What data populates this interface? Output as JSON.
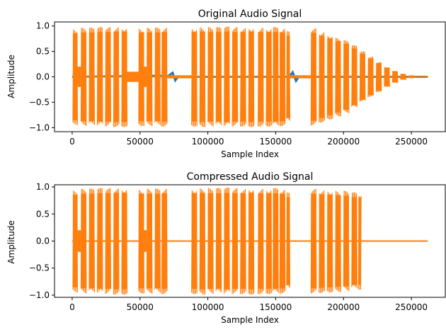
{
  "chart_data": [
    {
      "type": "line",
      "title": "Original Audio Signal",
      "xlabel": "Sample Index",
      "ylabel": "Amplitude",
      "xlim": [
        -13000,
        275000
      ],
      "ylim": [
        -1.08,
        1.08
      ],
      "xticks": [
        0,
        50000,
        100000,
        150000,
        200000,
        250000
      ],
      "yticks": [
        -1.0,
        -0.5,
        0.0,
        0.5,
        1.0
      ],
      "xtick_labels": [
        "0",
        "50000",
        "100000",
        "150000",
        "200000",
        "250000"
      ],
      "ytick_labels": [
        "−1.0",
        "−0.5",
        "0.0",
        "0.5",
        "1.0"
      ],
      "x_range": [
        0,
        262144
      ],
      "series": [
        {
          "color": "#1f77b4",
          "values": [
            [
              0,
              0.0
            ],
            [
              71000,
              0.02
            ],
            [
              74000,
              0.08
            ],
            [
              76000,
              -0.07
            ],
            [
              78000,
              0.0
            ],
            [
              160000,
              0.0
            ],
            [
              162500,
              0.09
            ],
            [
              165000,
              -0.08
            ],
            [
              167000,
              0.0
            ],
            [
              262144,
              0.0
            ]
          ]
        },
        {
          "color": "#ff7f0e",
          "values": [
            [
              0,
              0.0
            ],
            [
              262144,
              0.0
            ]
          ]
        }
      ],
      "bursts": [
        [
          500,
          4000,
          0.95
        ],
        [
          6500,
          10500,
          0.97
        ],
        [
          12500,
          16500,
          0.97
        ],
        [
          18500,
          22500,
          0.98
        ],
        [
          24500,
          28500,
          0.98
        ],
        [
          30500,
          34500,
          0.99
        ],
        [
          36500,
          40500,
          0.99
        ],
        [
          49000,
          53000,
          0.97
        ],
        [
          55000,
          59000,
          0.97
        ],
        [
          61000,
          65000,
          0.97
        ],
        [
          66000,
          70000,
          0.98
        ],
        [
          88000,
          92000,
          0.98
        ],
        [
          94000,
          98000,
          0.99
        ],
        [
          100000,
          104000,
          0.98
        ],
        [
          106000,
          110000,
          0.98
        ],
        [
          112000,
          116000,
          0.99
        ],
        [
          118000,
          122000,
          0.98
        ],
        [
          124000,
          128000,
          0.98
        ],
        [
          130000,
          134000,
          0.99
        ],
        [
          137000,
          141000,
          0.98
        ],
        [
          143000,
          147000,
          0.98
        ],
        [
          148000,
          152000,
          0.98
        ],
        [
          153000,
          157000,
          0.97
        ],
        [
          158000,
          160500,
          0.9
        ],
        [
          176000,
          180000,
          0.96
        ],
        [
          182000,
          186000,
          0.9
        ],
        [
          188000,
          192000,
          0.84
        ],
        [
          194000,
          198000,
          0.78
        ],
        [
          200000,
          204000,
          0.72
        ],
        [
          206000,
          210000,
          0.62
        ],
        [
          212000,
          216000,
          0.5
        ],
        [
          218000,
          222000,
          0.4
        ],
        [
          224000,
          228000,
          0.3
        ],
        [
          230000,
          234000,
          0.2
        ],
        [
          236000,
          240000,
          0.12
        ],
        [
          242000,
          246000,
          0.06
        ],
        [
          248000,
          252000,
          0.02
        ]
      ],
      "quiet": [
        [
          4000,
          6500,
          0.2
        ],
        [
          40500,
          49000,
          0.1
        ],
        [
          53000,
          55000,
          0.2
        ],
        [
          70000,
          88000,
          0.03
        ],
        [
          160500,
          176000,
          0.03
        ]
      ]
    },
    {
      "type": "line",
      "title": "Compressed Audio Signal",
      "xlabel": "Sample Index",
      "ylabel": "Amplitude",
      "xlim": [
        -13000,
        275000
      ],
      "ylim": [
        -1.04,
        1.04
      ],
      "xticks": [
        0,
        50000,
        100000,
        150000,
        200000,
        250000
      ],
      "yticks": [
        -1.0,
        -0.5,
        0.0,
        0.5,
        1.0
      ],
      "xtick_labels": [
        "0",
        "50000",
        "100000",
        "150000",
        "200000",
        "250000"
      ],
      "ytick_labels": [
        "−1.0",
        "−0.5",
        "0.0",
        "0.5",
        "1.0"
      ],
      "x_range": [
        0,
        262144
      ],
      "series": [
        {
          "color": "#ff7f0e",
          "values": [
            [
              0,
              0.0
            ],
            [
              262144,
              0.0
            ]
          ]
        }
      ],
      "bursts": [
        [
          500,
          4000,
          0.95
        ],
        [
          6500,
          10500,
          0.97
        ],
        [
          12500,
          16500,
          0.97
        ],
        [
          18500,
          22500,
          0.98
        ],
        [
          24500,
          28500,
          0.98
        ],
        [
          30500,
          34500,
          0.99
        ],
        [
          36500,
          40500,
          0.99
        ],
        [
          49000,
          53000,
          0.97
        ],
        [
          55000,
          59000,
          0.97
        ],
        [
          61000,
          65000,
          0.97
        ],
        [
          66000,
          70000,
          0.98
        ],
        [
          88000,
          92000,
          0.98
        ],
        [
          94000,
          98000,
          0.99
        ],
        [
          100000,
          104000,
          0.98
        ],
        [
          106000,
          110000,
          0.98
        ],
        [
          112000,
          116000,
          0.99
        ],
        [
          118000,
          122000,
          0.98
        ],
        [
          124000,
          128000,
          0.98
        ],
        [
          130000,
          134000,
          0.99
        ],
        [
          137000,
          141000,
          0.98
        ],
        [
          143000,
          147000,
          0.98
        ],
        [
          148000,
          152000,
          0.98
        ],
        [
          153000,
          157000,
          0.97
        ],
        [
          158000,
          160500,
          0.9
        ],
        [
          176000,
          180000,
          0.97
        ],
        [
          182000,
          186000,
          0.96
        ],
        [
          188000,
          192000,
          0.95
        ],
        [
          194000,
          198000,
          0.94
        ],
        [
          200000,
          204000,
          0.93
        ],
        [
          206000,
          210000,
          0.9
        ],
        [
          211000,
          213000,
          0.9
        ]
      ],
      "quiet": [
        [
          4000,
          6500,
          0.2
        ],
        [
          53000,
          55000,
          0.2
        ]
      ]
    }
  ]
}
